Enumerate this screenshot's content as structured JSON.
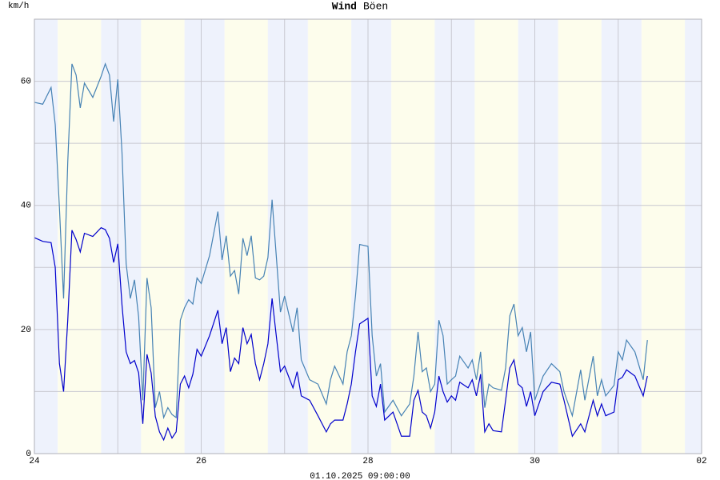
{
  "chart_data": {
    "type": "line",
    "y_label": "km/h",
    "subtitle": "01.10.2025 09:00:00",
    "xlim": [
      0,
      8
    ],
    "xticks": [
      {
        "value": 0,
        "label": "24"
      },
      {
        "value": 2,
        "label": "26"
      },
      {
        "value": 4,
        "label": "28"
      },
      {
        "value": 6,
        "label": "30"
      },
      {
        "value": 8,
        "label": "02"
      }
    ],
    "minor_xticks": [
      1,
      3,
      5,
      7
    ],
    "ylim": [
      0,
      70
    ],
    "yticks": [
      0,
      20,
      40,
      60
    ],
    "minor_yticks": [
      10,
      30,
      50
    ],
    "grid": true,
    "x": [
      0,
      0.1,
      0.2,
      0.25,
      0.3,
      0.35,
      0.4,
      0.45,
      0.5,
      0.55,
      0.6,
      0.7,
      0.8,
      0.85,
      0.9,
      0.95,
      1.0,
      1.05,
      1.1,
      1.15,
      1.2,
      1.25,
      1.3,
      1.35,
      1.4,
      1.45,
      1.5,
      1.55,
      1.6,
      1.65,
      1.7,
      1.75,
      1.8,
      1.85,
      1.9,
      1.95,
      2.0,
      2.1,
      2.2,
      2.25,
      2.3,
      2.35,
      2.4,
      2.45,
      2.5,
      2.55,
      2.6,
      2.65,
      2.7,
      2.75,
      2.8,
      2.85,
      2.9,
      2.95,
      3.0,
      3.1,
      3.15,
      3.2,
      3.3,
      3.4,
      3.5,
      3.55,
      3.6,
      3.7,
      3.75,
      3.8,
      3.85,
      3.9,
      4.0,
      4.05,
      4.1,
      4.15,
      4.2,
      4.3,
      4.4,
      4.5,
      4.55,
      4.6,
      4.65,
      4.7,
      4.75,
      4.8,
      4.85,
      4.9,
      4.95,
      5.0,
      5.05,
      5.1,
      5.2,
      5.25,
      5.3,
      5.35,
      5.4,
      5.45,
      5.5,
      5.6,
      5.65,
      5.7,
      5.75,
      5.8,
      5.85,
      5.9,
      5.95,
      6.0,
      6.1,
      6.2,
      6.3,
      6.35,
      6.45,
      6.55,
      6.6,
      6.7,
      6.75,
      6.8,
      6.85,
      6.95,
      7.0,
      7.05,
      7.1,
      7.2,
      7.3,
      7.35
    ],
    "series": [
      {
        "name": "Wind",
        "color": "#0000cc",
        "values": [
          34.8,
          34.2,
          34,
          30,
          14.5,
          10,
          21.5,
          36,
          34.5,
          32.5,
          35.5,
          35,
          36.4,
          36.1,
          34.7,
          30.8,
          33.8,
          24,
          16.4,
          14.5,
          15,
          13,
          4.8,
          16,
          13,
          6,
          3.5,
          2.2,
          4.1,
          2.5,
          3.5,
          11.2,
          12.5,
          10.6,
          12.8,
          16.8,
          15.7,
          19,
          23.1,
          17.7,
          20.3,
          13.2,
          15.4,
          14.5,
          20.3,
          17.7,
          19.2,
          14.5,
          11.9,
          14.5,
          17.7,
          25,
          19,
          13.2,
          14.1,
          10.6,
          13.2,
          9.3,
          8.6,
          6.1,
          3.5,
          4.8,
          5.4,
          5.4,
          8,
          11.2,
          16.4,
          20.9,
          21.8,
          9.3,
          7.6,
          11.2,
          5.4,
          6.7,
          2.8,
          2.8,
          8.6,
          10.2,
          6.7,
          6.1,
          4.1,
          6.7,
          12.5,
          10,
          8.3,
          9.3,
          8.6,
          11.5,
          10.6,
          11.9,
          9.3,
          12.8,
          3.5,
          4.8,
          3.7,
          3.5,
          8.6,
          13.8,
          15.1,
          11.2,
          10.6,
          7.6,
          10,
          6.1,
          10,
          11.5,
          11.2,
          8.6,
          2.8,
          4.8,
          3.5,
          8.6,
          6.1,
          8,
          6.1,
          6.7,
          11.9,
          12.3,
          13.5,
          12.5,
          9.3,
          12.5
        ]
      },
      {
        "name": "Böen",
        "color": "#4682b4",
        "values": [
          56.6,
          56.3,
          59,
          53,
          39.6,
          25,
          47,
          62.8,
          61,
          55.7,
          59.7,
          57.4,
          60.8,
          62.8,
          61,
          53.5,
          60.3,
          48.6,
          30.6,
          25,
          28,
          22,
          8.6,
          28.3,
          23.5,
          7.4,
          10,
          5.8,
          7.4,
          6.3,
          5.8,
          21.5,
          23.5,
          24.8,
          24.1,
          28.3,
          27.4,
          31.9,
          39,
          31.2,
          35.1,
          28.6,
          29.5,
          25.7,
          34.7,
          31.9,
          35.1,
          28.3,
          28,
          28.6,
          31.6,
          40.9,
          31.9,
          22.8,
          25.4,
          19.6,
          23.5,
          15.1,
          11.9,
          11.2,
          8,
          11.9,
          14.1,
          11.2,
          16.4,
          19,
          25.4,
          33.7,
          33.4,
          19,
          12.5,
          14.5,
          6.7,
          8.6,
          6.1,
          8,
          12.5,
          19.6,
          13.2,
          13.8,
          10,
          11.2,
          21.5,
          19,
          11.2,
          11.9,
          12.5,
          15.7,
          13.8,
          15.1,
          11.9,
          16.4,
          7.4,
          11.2,
          10.6,
          10.2,
          13.8,
          22.2,
          24.1,
          19,
          20.3,
          16.4,
          19.6,
          8.6,
          12.5,
          14.5,
          13.2,
          10,
          6.1,
          13.5,
          8.6,
          15.7,
          9.3,
          11.9,
          9.3,
          11,
          16.4,
          15.1,
          18.3,
          16.4,
          11.9,
          18.3
        ]
      }
    ]
  }
}
